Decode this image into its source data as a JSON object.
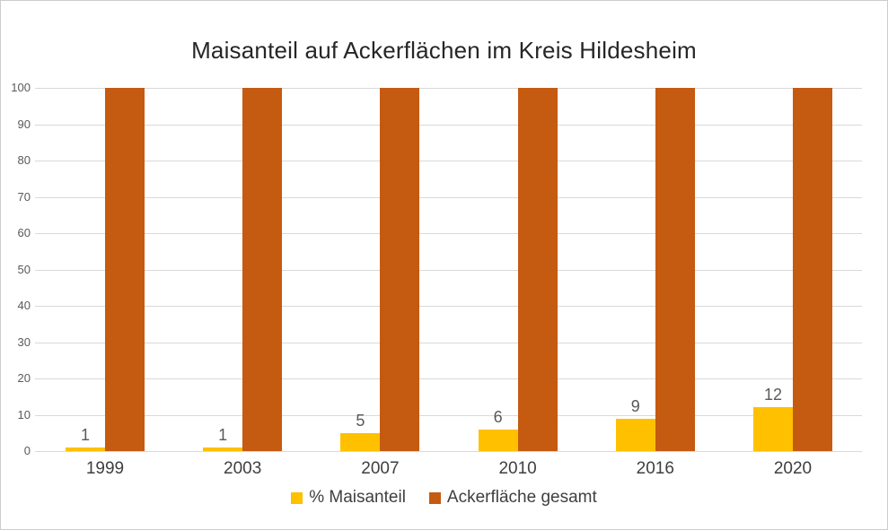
{
  "chart_data": {
    "type": "bar",
    "title": "Maisanteil auf Ackerflächen im Kreis Hildesheim",
    "categories": [
      "1999",
      "2003",
      "2007",
      "2010",
      "2016",
      "2020"
    ],
    "series": [
      {
        "name": "% Maisanteil",
        "color": "#FFC000",
        "values": [
          1,
          1,
          5,
          6,
          9,
          12
        ],
        "data_labels": [
          "1",
          "1",
          "5",
          "6",
          "9",
          "12"
        ]
      },
      {
        "name": "Ackerfläche gesamt",
        "color": "#C55A11",
        "values": [
          100,
          100,
          100,
          100,
          100,
          100
        ],
        "data_labels": []
      }
    ],
    "xlabel": "",
    "ylabel": "",
    "ylim": [
      0,
      100
    ],
    "yticks": [
      0,
      10,
      20,
      30,
      40,
      50,
      60,
      70,
      80,
      90,
      100
    ],
    "grid": true,
    "legend_position": "bottom"
  },
  "legend": {
    "items": [
      {
        "label": "% Maisanteil",
        "color": "#FFC000"
      },
      {
        "label": "Ackerfläche gesamt",
        "color": "#C55A11"
      }
    ]
  }
}
